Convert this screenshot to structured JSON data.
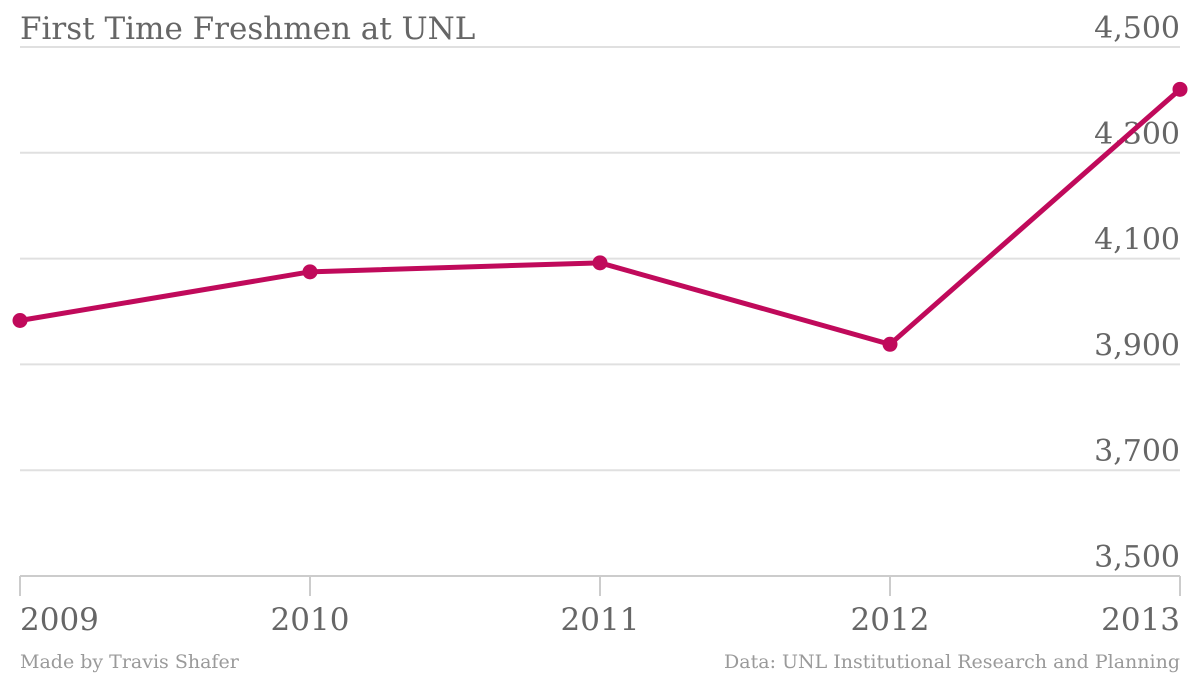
{
  "chart_data": {
    "type": "line",
    "title": "First Time Freshmen at UNL",
    "xlabel": "",
    "ylabel": "",
    "categories": [
      "2009",
      "2010",
      "2011",
      "2012",
      "2013"
    ],
    "series": [
      {
        "values": [
          3983,
          4075,
          4092,
          3938,
          4420
        ]
      }
    ],
    "ylim": [
      3500,
      4500
    ],
    "yticks": [
      3500,
      3700,
      3900,
      4100,
      4300,
      4500
    ],
    "ytick_labels": [
      "3,500",
      "3,700",
      "3,900",
      "4,100",
      "4,300",
      "4,500"
    ],
    "y_axis_side": "right",
    "grid": true,
    "legend": "none",
    "credit": "Made by Travis Shafer",
    "source": "Data: UNL Institutional Research and Planning"
  },
  "colors": {
    "line": "#c00a5b",
    "grid": "#e0e0e0",
    "axis": "#cccccc",
    "text": "#666666",
    "background": "#ffffff"
  }
}
